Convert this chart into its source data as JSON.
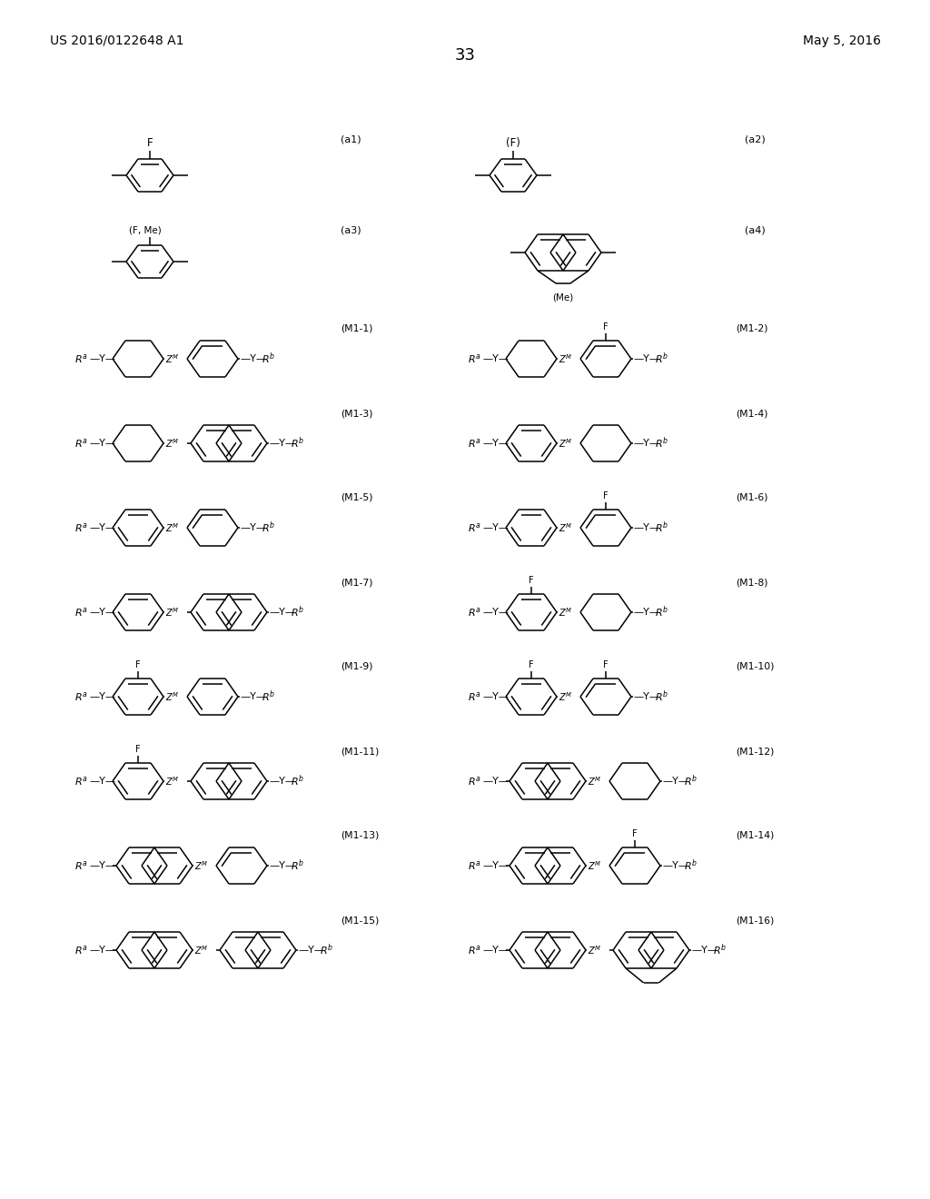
{
  "page_number": "33",
  "patent_left": "US 2016/0122648 A1",
  "patent_right": "May 5, 2016",
  "background": "#ffffff",
  "figsize": [
    10.24,
    13.2
  ],
  "dpi": 100
}
